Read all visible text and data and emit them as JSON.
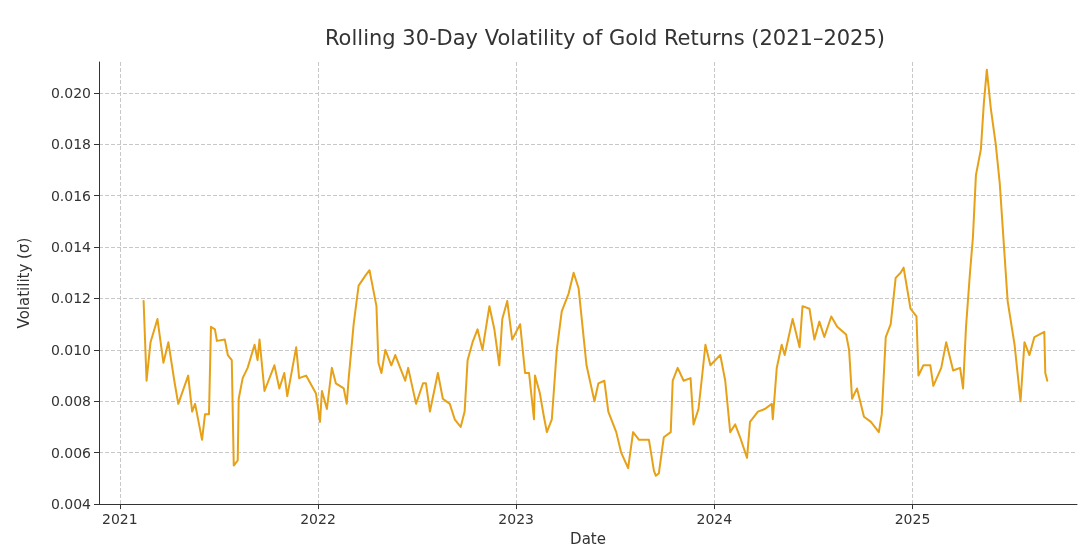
{
  "chart_data": {
    "type": "line",
    "title": "Rolling 30-Day Volatility of Gold Returns (2021–2025)",
    "xlabel": "Date",
    "ylabel": "Volatility (σ)",
    "xlim": [
      2020.895,
      2025.83
    ],
    "xticks": [
      2021,
      2022,
      2023,
      2024,
      2025
    ],
    "ylim": [
      0.004,
      0.0212
    ],
    "yticks": [
      0.004,
      0.006,
      0.008,
      {
        "value": 0.01,
        "label": "0.010"
      },
      0.012,
      0.014,
      0.016,
      0.018,
      {
        "value": 0.02,
        "label": "0.020"
      }
    ],
    "grid": true,
    "marker": "none",
    "line_style": "solid",
    "series": [
      {
        "color": "#e6a118",
        "x": [
          2021.12,
          2021.135,
          2021.155,
          2021.19,
          2021.22,
          2021.245,
          2021.275,
          2021.295,
          2021.345,
          2021.365,
          2021.38,
          2021.415,
          2021.43,
          2021.45,
          2021.46,
          2021.48,
          2021.49,
          2021.53,
          2021.545,
          2021.565,
          2021.575,
          2021.595,
          2021.6,
          2021.62,
          2021.645,
          2021.68,
          2021.695,
          2021.705,
          2021.73,
          2021.78,
          2021.805,
          2021.83,
          2021.845,
          2021.89,
          2021.905,
          2021.94,
          2021.99,
          2022.01,
          2022.02,
          2022.045,
          2022.07,
          2022.09,
          2022.13,
          2022.145,
          2022.155,
          2022.18,
          2022.205,
          2022.24,
          2022.26,
          2022.295,
          2022.305,
          2022.32,
          2022.34,
          2022.37,
          2022.39,
          2022.44,
          2022.455,
          2022.495,
          2022.53,
          2022.545,
          2022.565,
          2022.605,
          2022.63,
          2022.665,
          2022.69,
          2022.72,
          2022.74,
          2022.755,
          2022.78,
          2022.805,
          2022.83,
          2022.865,
          2022.89,
          2022.915,
          2022.93,
          2022.955,
          2022.98,
          2023.02,
          2023.045,
          2023.065,
          2023.09,
          2023.095,
          2023.12,
          2023.14,
          2023.155,
          2023.18,
          2023.205,
          2023.23,
          2023.265,
          2023.29,
          2023.315,
          2023.355,
          2023.395,
          2023.415,
          2023.445,
          2023.465,
          2023.505,
          2023.53,
          2023.565,
          2023.59,
          2023.62,
          2023.67,
          2023.695,
          2023.705,
          2023.72,
          2023.745,
          2023.78,
          2023.79,
          2023.815,
          2023.845,
          2023.88,
          2023.895,
          2023.92,
          2023.94,
          2023.955,
          2023.98,
          2024.03,
          2024.055,
          2024.08,
          2024.105,
          2024.13,
          2024.165,
          2024.18,
          2024.22,
          2024.255,
          2024.29,
          2024.295,
          2024.315,
          2024.34,
          2024.355,
          2024.395,
          2024.43,
          2024.445,
          2024.48,
          2024.505,
          2024.53,
          2024.555,
          2024.59,
          2024.62,
          2024.665,
          2024.68,
          2024.695,
          2024.72,
          2024.755,
          2024.79,
          2024.83,
          2024.845,
          2024.865,
          2024.89,
          2024.915,
          2024.94,
          2024.955,
          2024.99,
          2025.02,
          2025.03,
          2025.055,
          2025.09,
          2025.105,
          2025.145,
          2025.17,
          2025.205,
          2025.24,
          2025.255,
          2025.27,
          2025.29,
          2025.305,
          2025.32,
          2025.345,
          2025.36,
          2025.375,
          2025.395,
          2025.42,
          2025.44,
          2025.48,
          2025.515,
          2025.545,
          2025.565,
          2025.59,
          2025.615,
          2025.665,
          2025.67,
          2025.68
        ],
        "values": [
          0.0119,
          0.0088,
          0.0103,
          0.0112,
          0.0095,
          0.0103,
          0.0088,
          0.0079,
          0.009,
          0.0076,
          0.0079,
          0.0065,
          0.0075,
          0.0075,
          0.0109,
          0.0108,
          0.01035,
          0.0104,
          0.0098,
          0.0096,
          0.0055,
          0.0057,
          0.0081,
          0.0089,
          0.0093,
          0.0102,
          0.0096,
          0.0104,
          0.0084,
          0.0094,
          0.0085,
          0.0091,
          0.0082,
          0.0101,
          0.0089,
          0.009,
          0.0083,
          0.0072,
          0.0084,
          0.0077,
          0.0093,
          0.0087,
          0.0085,
          0.0079,
          0.0089,
          0.011,
          0.0125,
          0.0129,
          0.0131,
          0.0117,
          0.0095,
          0.0091,
          0.01,
          0.0094,
          0.0098,
          0.0088,
          0.0093,
          0.0079,
          0.0087,
          0.0087,
          0.0076,
          0.0091,
          0.0081,
          0.0079,
          0.0073,
          0.007,
          0.0076,
          0.0096,
          0.0103,
          0.0108,
          0.01,
          0.0117,
          0.0108,
          0.0094,
          0.0112,
          0.0119,
          0.0104,
          0.011,
          0.0091,
          0.0091,
          0.0073,
          0.009,
          0.0083,
          0.0074,
          0.0068,
          0.0073,
          0.01,
          0.0115,
          0.0122,
          0.013,
          0.0124,
          0.0094,
          0.008,
          0.0087,
          0.0088,
          0.0076,
          0.0068,
          0.006,
          0.0054,
          0.0068,
          0.0065,
          0.0065,
          0.0053,
          0.0051,
          0.0052,
          0.0066,
          0.0068,
          0.0088,
          0.0093,
          0.0088,
          0.0089,
          0.0071,
          0.0077,
          0.0091,
          0.0102,
          0.0094,
          0.0098,
          0.0088,
          0.0068,
          0.0071,
          0.0066,
          0.0058,
          0.0072,
          0.0076,
          0.0077,
          0.0079,
          0.0073,
          0.0093,
          0.0102,
          0.0098,
          0.0112,
          0.0101,
          0.0117,
          0.0116,
          0.0104,
          0.0111,
          0.0105,
          0.0113,
          0.0109,
          0.0106,
          0.01,
          0.0081,
          0.0085,
          0.0074,
          0.0072,
          0.0068,
          0.0075,
          0.0105,
          0.011,
          0.0128,
          0.013,
          0.0132,
          0.0116,
          0.0113,
          0.009,
          0.0094,
          0.0094,
          0.0086,
          0.0093,
          0.0103,
          0.0092,
          0.0093,
          0.0085,
          0.0109,
          0.013,
          0.0144,
          0.0168,
          0.0178,
          0.0196,
          0.0209,
          0.0194,
          0.018,
          0.0165,
          0.0119,
          0.0102,
          0.008,
          0.0103,
          0.0098,
          0.0105,
          0.0107,
          0.0091,
          0.0088
        ]
      }
    ]
  }
}
